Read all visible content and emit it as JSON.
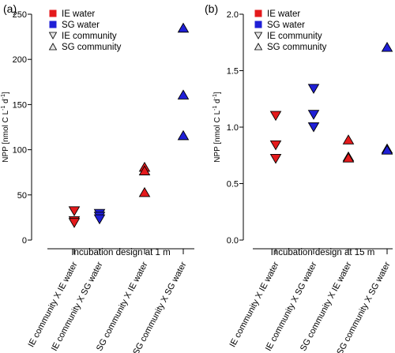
{
  "figure": {
    "panels": [
      {
        "tag": "(a)"
      },
      {
        "tag": "(b)"
      }
    ],
    "colors": {
      "ie_water": "#e41a1c",
      "sg_water": "#1f1fd6",
      "outline": "#000000",
      "legend_gray": "#e6e6e6"
    }
  },
  "chart_data": [
    {
      "type": "scatter",
      "panel": "(a)",
      "title": "",
      "xlabel": "Incubation design at 1 m",
      "ylabel": "NPP [nmol C L⁻¹ d⁻¹]",
      "ylabel_parts": {
        "base": "NPP [nmol C L",
        "exp1": "-1",
        "mid": " d",
        "exp2": "-1",
        "end": "]"
      },
      "ylim": [
        0,
        250
      ],
      "yticks": [
        0,
        50,
        100,
        150,
        200,
        250
      ],
      "yticklabels": [
        "0",
        "50",
        "100",
        "150",
        "200",
        "250"
      ],
      "categories": [
        "IE community X IE water",
        "IE community X SG water",
        "SG community X IE water",
        "SG community X SG water"
      ],
      "legend": {
        "position": "top-left",
        "entries": [
          {
            "label": "IE water",
            "marker": "square",
            "color": "#e41a1c"
          },
          {
            "label": "SG water",
            "marker": "square",
            "color": "#1f1fd6"
          },
          {
            "label": "IE community",
            "marker": "triangle-down",
            "color": "#e6e6e6"
          },
          {
            "label": "SG community",
            "marker": "triangle-up",
            "color": "#e6e6e6"
          }
        ]
      },
      "series": [
        {
          "category": "IE community X IE water",
          "marker": "triangle-down",
          "color": "#e41a1c",
          "values": [
            32,
            21,
            19
          ]
        },
        {
          "category": "IE community X SG water",
          "marker": "triangle-down",
          "color": "#1f1fd6",
          "values": [
            29,
            26,
            23
          ]
        },
        {
          "category": "SG community X IE water",
          "marker": "triangle-up",
          "color": "#e41a1c",
          "values": [
            81,
            77,
            53
          ]
        },
        {
          "category": "SG community X SG water",
          "marker": "triangle-up",
          "color": "#1f1fd6",
          "values": [
            235,
            161,
            116
          ]
        }
      ]
    },
    {
      "type": "scatter",
      "panel": "(b)",
      "title": "",
      "xlabel": "Incubation design at 15 m",
      "ylabel": "NPP [nmol C L⁻¹ d⁻¹]",
      "ylabel_parts": {
        "base": "NPP [nmol C L",
        "exp1": "-1",
        "mid": " d",
        "exp2": "-1",
        "end": "]"
      },
      "ylim": [
        0,
        2
      ],
      "yticks": [
        0,
        0.5,
        1,
        1.5,
        2
      ],
      "yticklabels": [
        "0.0",
        "0.5",
        "1.0",
        "1.5",
        "2.0"
      ],
      "categories": [
        "IE community X IE water",
        "IE community X SG water",
        "SG community X IE water",
        "SG community X SG water"
      ],
      "legend": {
        "position": "top-left",
        "entries": [
          {
            "label": "IE water",
            "marker": "square",
            "color": "#e41a1c"
          },
          {
            "label": "SG water",
            "marker": "square",
            "color": "#1f1fd6"
          },
          {
            "label": "IE community",
            "marker": "triangle-down",
            "color": "#e6e6e6"
          },
          {
            "label": "SG community",
            "marker": "triangle-up",
            "color": "#e6e6e6"
          }
        ]
      },
      "series": [
        {
          "category": "IE community X IE water",
          "marker": "triangle-down",
          "color": "#e41a1c",
          "values": [
            1.1,
            0.84,
            0.72
          ]
        },
        {
          "category": "IE community X SG water",
          "marker": "triangle-down",
          "color": "#1f1fd6",
          "values": [
            1.34,
            1.11,
            1.0
          ]
        },
        {
          "category": "SG community X IE water",
          "marker": "triangle-up",
          "color": "#e41a1c",
          "values": [
            0.89,
            0.74,
            0.73
          ]
        },
        {
          "category": "SG community X SG water",
          "marker": "triangle-up",
          "color": "#1f1fd6",
          "values": [
            1.71,
            0.81,
            0.8
          ]
        }
      ]
    }
  ]
}
